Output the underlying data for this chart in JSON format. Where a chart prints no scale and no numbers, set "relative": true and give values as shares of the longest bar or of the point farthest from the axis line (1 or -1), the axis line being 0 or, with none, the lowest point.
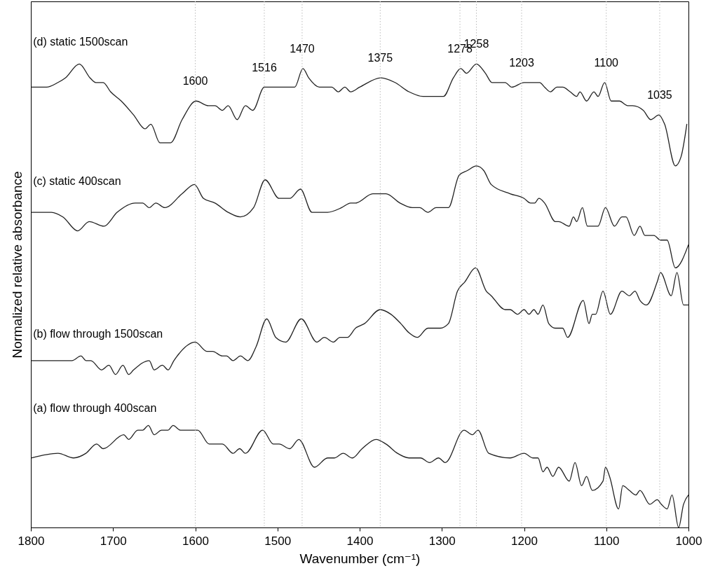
{
  "chart_data": {
    "type": "line",
    "relative": true,
    "xlabel": "Wavenumber (cm⁻¹)",
    "ylabel": "Normalized relative absorbance",
    "xlim": [
      1800,
      1000
    ],
    "xticks": [
      1800,
      1700,
      1600,
      1500,
      1400,
      1300,
      1200,
      1100,
      1000
    ],
    "grid": false,
    "ref_lines": [
      {
        "axis": "x",
        "value": 1600,
        "label": "1600",
        "color": "#bbbbbb",
        "line_style": "dotted"
      },
      {
        "axis": "x",
        "value": 1516,
        "label": "1516",
        "color": "#bbbbbb",
        "line_style": "dotted"
      },
      {
        "axis": "x",
        "value": 1470,
        "label": "1470",
        "color": "#bbbbbb",
        "line_style": "dotted"
      },
      {
        "axis": "x",
        "value": 1375,
        "label": "1375",
        "color": "#bbbbbb",
        "line_style": "dotted"
      },
      {
        "axis": "x",
        "value": 1278,
        "label": "1278",
        "color": "#bbbbbb",
        "line_style": "dotted"
      },
      {
        "axis": "x",
        "value": 1258,
        "label": "1258",
        "color": "#bbbbbb",
        "line_style": "dotted"
      },
      {
        "axis": "x",
        "value": 1203,
        "label": "1203",
        "color": "#bbbbbb",
        "line_style": "dotted"
      },
      {
        "axis": "x",
        "value": 1100,
        "label": "1100",
        "color": "#bbbbbb",
        "line_style": "dotted"
      },
      {
        "axis": "x",
        "value": 1035,
        "label": "1035",
        "color": "#bbbbbb",
        "line_style": "dotted"
      }
    ],
    "series": [
      {
        "name": "(d) static 1500scan",
        "color": "#222222",
        "x": [
          1799,
          1781,
          1767,
          1758,
          1741,
          1728,
          1721,
          1712,
          1703,
          1690,
          1675,
          1661,
          1654,
          1643,
          1630,
          1616,
          1599,
          1584,
          1576,
          1567,
          1560,
          1549,
          1539,
          1530,
          1516,
          1505,
          1488,
          1479,
          1469,
          1462,
          1449,
          1434,
          1426,
          1418,
          1411,
          1400,
          1374,
          1357,
          1340,
          1323,
          1298,
          1286,
          1277,
          1270,
          1258,
          1247,
          1239,
          1223,
          1215,
          1200,
          1181,
          1175,
          1168,
          1160,
          1153,
          1144,
          1136,
          1132,
          1124,
          1115,
          1110,
          1102,
          1094,
          1084,
          1074,
          1068,
          1055,
          1046,
          1036,
          1029,
          1016,
          1009,
          1002
        ],
        "values": [
          0.95,
          0.95,
          0.96,
          0.97,
          1,
          0.97,
          0.96,
          0.96,
          0.94,
          0.92,
          0.89,
          0.86,
          0.87,
          0.83,
          0.83,
          0.88,
          0.92,
          0.91,
          0.91,
          0.9,
          0.91,
          0.88,
          0.91,
          0.9,
          0.95,
          0.95,
          0.95,
          0.95,
          0.99,
          0.97,
          0.95,
          0.95,
          0.94,
          0.95,
          0.94,
          0.95,
          0.97,
          0.96,
          0.94,
          0.93,
          0.93,
          0.97,
          0.99,
          0.98,
          1,
          0.98,
          0.96,
          0.96,
          0.95,
          0.96,
          0.96,
          0.95,
          0.94,
          0.95,
          0.95,
          0.94,
          0.93,
          0.94,
          0.92,
          0.94,
          0.93,
          0.96,
          0.92,
          0.92,
          0.91,
          0.91,
          0.9,
          0.88,
          0.89,
          0.87,
          0.78,
          0.8,
          0.87
        ]
      },
      {
        "name": "(c) static 400scan",
        "color": "#222222",
        "x": [
          1799,
          1775,
          1761,
          1743,
          1729,
          1711,
          1695,
          1673,
          1664,
          1656,
          1648,
          1637,
          1616,
          1601,
          1590,
          1576,
          1560,
          1545,
          1529,
          1515,
          1498,
          1485,
          1472,
          1458,
          1439,
          1422,
          1411,
          1405,
          1384,
          1368,
          1351,
          1336,
          1327,
          1317,
          1307,
          1292,
          1279,
          1269,
          1258,
          1249,
          1240,
          1217,
          1200,
          1192,
          1187,
          1182,
          1175,
          1162,
          1158,
          1145,
          1140,
          1136,
          1129,
          1123,
          1110,
          1101,
          1090,
          1081,
          1076,
          1066,
          1059,
          1053,
          1042,
          1034,
          1026,
          1016,
          1000
        ],
        "values": [
          0.68,
          0.68,
          0.67,
          0.64,
          0.66,
          0.65,
          0.68,
          0.7,
          0.7,
          0.69,
          0.7,
          0.69,
          0.72,
          0.74,
          0.71,
          0.7,
          0.68,
          0.67,
          0.69,
          0.75,
          0.71,
          0.71,
          0.73,
          0.68,
          0.68,
          0.69,
          0.7,
          0.7,
          0.72,
          0.72,
          0.7,
          0.69,
          0.69,
          0.68,
          0.69,
          0.69,
          0.76,
          0.77,
          0.78,
          0.77,
          0.74,
          0.72,
          0.71,
          0.7,
          0.7,
          0.71,
          0.7,
          0.66,
          0.66,
          0.65,
          0.67,
          0.66,
          0.69,
          0.65,
          0.65,
          0.69,
          0.65,
          0.67,
          0.67,
          0.63,
          0.65,
          0.63,
          0.63,
          0.62,
          0.62,
          0.56,
          0.61
        ]
      },
      {
        "name": "(b) flow through 1500scan",
        "color": "#222222",
        "x": [
          1799,
          1767,
          1750,
          1739,
          1733,
          1727,
          1714,
          1705,
          1697,
          1688,
          1681,
          1675,
          1656,
          1650,
          1640,
          1633,
          1626,
          1600,
          1586,
          1579,
          1567,
          1562,
          1554,
          1545,
          1536,
          1526,
          1513,
          1502,
          1490,
          1471,
          1452,
          1443,
          1432,
          1424,
          1415,
          1405,
          1394,
          1375,
          1362,
          1350,
          1340,
          1330,
          1317,
          1302,
          1292,
          1281,
          1272,
          1259,
          1246,
          1240,
          1223,
          1217,
          1208,
          1200,
          1194,
          1188,
          1183,
          1177,
          1170,
          1162,
          1153,
          1147,
          1128,
          1121,
          1117,
          1113,
          1104,
          1095,
          1081,
          1072,
          1065,
          1059,
          1051,
          1038,
          1034,
          1021,
          1014,
          1006,
          1000
        ],
        "values": [
          0.36,
          0.36,
          0.36,
          0.37,
          0.36,
          0.36,
          0.34,
          0.35,
          0.33,
          0.35,
          0.33,
          0.34,
          0.36,
          0.34,
          0.35,
          0.34,
          0.36,
          0.4,
          0.38,
          0.38,
          0.37,
          0.37,
          0.36,
          0.37,
          0.36,
          0.39,
          0.45,
          0.41,
          0.4,
          0.45,
          0.4,
          0.41,
          0.4,
          0.41,
          0.41,
          0.43,
          0.44,
          0.47,
          0.46,
          0.44,
          0.42,
          0.41,
          0.43,
          0.43,
          0.44,
          0.51,
          0.53,
          0.56,
          0.51,
          0.5,
          0.47,
          0.47,
          0.46,
          0.47,
          0.46,
          0.47,
          0.46,
          0.48,
          0.44,
          0.43,
          0.43,
          0.41,
          0.49,
          0.44,
          0.46,
          0.46,
          0.51,
          0.46,
          0.51,
          0.5,
          0.51,
          0.49,
          0.48,
          0.53,
          0.55,
          0.5,
          0.55,
          0.48,
          0.48
        ]
      },
      {
        "name": "(a) flow through 400scan",
        "color": "#222222",
        "x": [
          1799,
          1767,
          1748,
          1733,
          1720,
          1712,
          1687,
          1681,
          1670,
          1664,
          1657,
          1650,
          1641,
          1633,
          1627,
          1618,
          1597,
          1583,
          1567,
          1554,
          1546,
          1539,
          1518,
          1505,
          1498,
          1485,
          1474,
          1455,
          1439,
          1431,
          1420,
          1409,
          1397,
          1380,
          1368,
          1354,
          1340,
          1326,
          1315,
          1304,
          1296,
          1273,
          1263,
          1256,
          1243,
          1217,
          1200,
          1189,
          1183,
          1177,
          1172,
          1165,
          1158,
          1145,
          1138,
          1130,
          1124,
          1117,
          1104,
          1101,
          1096,
          1085,
          1080,
          1072,
          1064,
          1059,
          1047,
          1038,
          1033,
          1026,
          1020,
          1012,
          1006,
          1000
        ],
        "values": [
          0.15,
          0.16,
          0.15,
          0.16,
          0.18,
          0.17,
          0.2,
          0.19,
          0.21,
          0.21,
          0.22,
          0.2,
          0.21,
          0.21,
          0.22,
          0.21,
          0.21,
          0.18,
          0.18,
          0.16,
          0.17,
          0.16,
          0.21,
          0.18,
          0.18,
          0.17,
          0.19,
          0.13,
          0.15,
          0.15,
          0.16,
          0.15,
          0.17,
          0.19,
          0.18,
          0.16,
          0.15,
          0.15,
          0.14,
          0.15,
          0.14,
          0.21,
          0.2,
          0.21,
          0.16,
          0.15,
          0.16,
          0.15,
          0.15,
          0.12,
          0.13,
          0.11,
          0.13,
          0.1,
          0.14,
          0.09,
          0.11,
          0.08,
          0.1,
          0.13,
          0.11,
          0.04,
          0.09,
          0.08,
          0.07,
          0.08,
          0.05,
          0.06,
          0.05,
          0.04,
          0.07,
          0,
          0.05,
          0.07
        ]
      }
    ]
  }
}
